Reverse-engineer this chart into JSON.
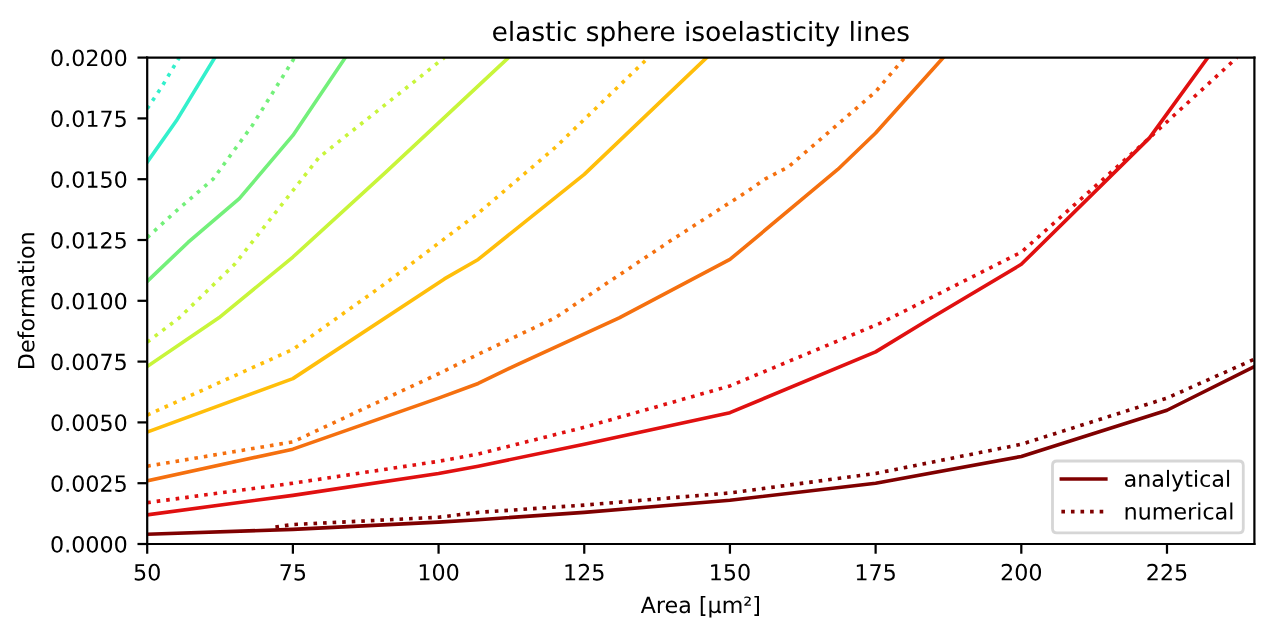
{
  "chart_data": {
    "type": "line",
    "title": "elastic sphere isoelasticity lines",
    "xlabel": "Area [μm²]",
    "ylabel": "Deformation",
    "xlim": [
      50,
      240
    ],
    "xticks": [
      50,
      75,
      100,
      125,
      150,
      175,
      200,
      225
    ],
    "ylim": [
      0,
      0.02
    ],
    "yticks": [
      {
        "value": 0,
        "label": "0.0000"
      },
      {
        "value": 0.0025,
        "label": "0.0025"
      },
      {
        "value": 0.005,
        "label": "0.0050"
      },
      {
        "value": 0.0075,
        "label": "0.0075"
      },
      {
        "value": 0.01,
        "label": "0.0100"
      },
      {
        "value": 0.0125,
        "label": "0.0125"
      },
      {
        "value": 0.015,
        "label": "0.0150"
      },
      {
        "value": 0.0175,
        "label": "0.0175"
      },
      {
        "value": 0.02,
        "label": "0.0200"
      }
    ],
    "grid": false,
    "legend": "bottom right",
    "marker": "none",
    "series": [
      {
        "name": "analytical",
        "color": "#7f0000",
        "line_style": "solid",
        "x": [
          50,
          75,
          100,
          106.8,
          125,
          150,
          175,
          200,
          225,
          240
        ],
        "values": [
          0.0004,
          0.0006,
          0.0009,
          0.001,
          0.0013,
          0.0018,
          0.0025,
          0.0036,
          0.0055,
          0.0073
        ]
      },
      {
        "name": "numerical",
        "color": "#7f0000",
        "line_style": "dotted",
        "x": [
          72,
          75,
          100,
          106.8,
          125,
          150,
          175,
          200,
          225,
          240
        ],
        "values": [
          0.0007,
          0.0008,
          0.0011,
          0.0013,
          0.0016,
          0.0021,
          0.0029,
          0.0041,
          0.006,
          0.0076
        ]
      },
      {
        "color": "#e01010",
        "line_style": "solid",
        "x": [
          50,
          75,
          100,
          106.8,
          125,
          150,
          175,
          184.6,
          200,
          222,
          232
        ],
        "values": [
          0.0012,
          0.002,
          0.0029,
          0.0032,
          0.0041,
          0.0054,
          0.0079,
          0.0093,
          0.0115,
          0.0167,
          0.02
        ]
      },
      {
        "color": "#e01010",
        "line_style": "dotted",
        "x": [
          50,
          75,
          100,
          106.8,
          125,
          150,
          176,
          200,
          222,
          237
        ],
        "values": [
          0.0017,
          0.0025,
          0.0034,
          0.0037,
          0.0048,
          0.0065,
          0.0091,
          0.012,
          0.0167,
          0.02
        ]
      },
      {
        "color": "#f5700f",
        "line_style": "solid",
        "x": [
          50,
          75,
          100,
          106.8,
          113.7,
          131,
          150,
          168.5,
          175,
          186.6
        ],
        "values": [
          0.0026,
          0.0039,
          0.006,
          0.0066,
          0.0074,
          0.0093,
          0.0117,
          0.0154,
          0.0169,
          0.02
        ]
      },
      {
        "color": "#f5700f",
        "line_style": "dotted",
        "x": [
          50,
          75,
          100,
          106.8,
          120,
          140,
          153,
          156,
          160,
          175,
          180
        ],
        "values": [
          0.0032,
          0.0042,
          0.007,
          0.0078,
          0.0093,
          0.0125,
          0.0145,
          0.015,
          0.0155,
          0.0186,
          0.02
        ]
      },
      {
        "color": "#ffbe0a",
        "line_style": "solid",
        "x": [
          50,
          75,
          101,
          106.8,
          125,
          146
        ],
        "values": [
          0.0046,
          0.0068,
          0.0109,
          0.0117,
          0.0152,
          0.02
        ]
      },
      {
        "color": "#ffbe0a",
        "line_style": "dotted",
        "x": [
          50,
          75,
          90.8,
          106.8,
          120,
          136
        ],
        "values": [
          0.0053,
          0.008,
          0.0107,
          0.0136,
          0.0163,
          0.02
        ]
      },
      {
        "color": "#c8f53a",
        "line_style": "solid",
        "x": [
          50,
          62.3,
          75,
          91,
          112
        ],
        "values": [
          0.0073,
          0.0093,
          0.0118,
          0.0153,
          0.02
        ]
      },
      {
        "color": "#c8f53a",
        "line_style": "dotted",
        "x": [
          50,
          55.5,
          65,
          79.5,
          101
        ],
        "values": [
          0.0083,
          0.0093,
          0.0115,
          0.0159,
          0.02
        ]
      },
      {
        "color": "#73f07a",
        "line_style": "solid",
        "x": [
          50,
          57,
          65.8,
          75,
          84
        ],
        "values": [
          0.0108,
          0.0124,
          0.0142,
          0.0168,
          0.02
        ]
      },
      {
        "color": "#73f07a",
        "line_style": "dotted",
        "x": [
          50,
          55,
          61.3,
          68,
          75.3
        ],
        "values": [
          0.0126,
          0.0137,
          0.015,
          0.0172,
          0.02
        ]
      },
      {
        "color": "#33f0cc",
        "line_style": "solid",
        "x": [
          50,
          55,
          61.6
        ],
        "values": [
          0.0157,
          0.0174,
          0.02
        ]
      },
      {
        "color": "#33f0cc",
        "line_style": "dotted",
        "x": [
          50,
          52.5,
          55.5
        ],
        "values": [
          0.0179,
          0.0188,
          0.02
        ]
      }
    ]
  }
}
